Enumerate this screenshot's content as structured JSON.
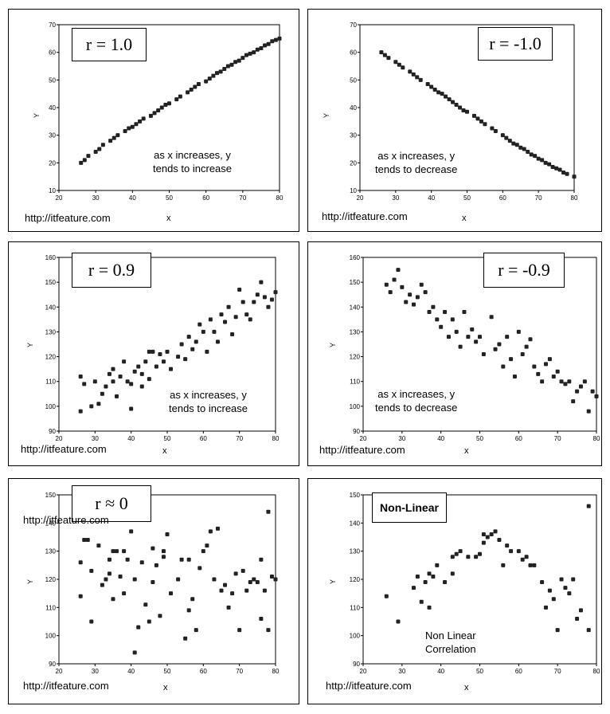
{
  "chart_data": [
    {
      "type": "scatter",
      "annotation": "r = 1.0",
      "note": [
        "as x increases, y",
        "tends to increase"
      ],
      "source": "http://itfeature.com",
      "xlabel": "x",
      "ylabel": "Y",
      "xlim": [
        20,
        80
      ],
      "ylim": [
        10,
        70
      ],
      "xticks": [
        "20",
        "30",
        "40",
        "50",
        "60",
        "70",
        "80"
      ],
      "yticks": [
        "10",
        "20",
        "30",
        "40",
        "50",
        "60",
        "70"
      ],
      "points": [
        [
          26,
          20
        ],
        [
          27,
          21
        ],
        [
          28,
          22.5
        ],
        [
          30,
          24
        ],
        [
          31,
          25
        ],
        [
          32,
          26.5
        ],
        [
          34,
          28
        ],
        [
          35,
          29
        ],
        [
          36,
          30
        ],
        [
          38,
          31.5
        ],
        [
          39,
          32.5
        ],
        [
          40,
          33
        ],
        [
          41,
          34
        ],
        [
          42,
          35
        ],
        [
          43,
          36
        ],
        [
          45,
          37
        ],
        [
          46,
          38
        ],
        [
          47,
          39
        ],
        [
          48,
          40
        ],
        [
          49,
          41
        ],
        [
          50,
          41.5
        ],
        [
          52,
          43
        ],
        [
          53,
          44
        ],
        [
          55,
          45.5
        ],
        [
          56,
          46.5
        ],
        [
          57,
          47.5
        ],
        [
          58,
          48.5
        ],
        [
          60,
          49.5
        ],
        [
          61,
          50.5
        ],
        [
          62,
          51.5
        ],
        [
          63,
          52.5
        ],
        [
          64,
          53
        ],
        [
          65,
          54
        ],
        [
          66,
          55
        ],
        [
          67,
          55.5
        ],
        [
          68,
          56.5
        ],
        [
          69,
          57
        ],
        [
          70,
          58
        ],
        [
          71,
          59
        ],
        [
          72,
          59.5
        ],
        [
          73,
          60
        ],
        [
          74,
          61
        ],
        [
          75,
          61.5
        ],
        [
          76,
          62.5
        ],
        [
          77,
          63
        ],
        [
          78,
          64
        ],
        [
          79,
          64.5
        ],
        [
          80,
          65
        ]
      ]
    },
    {
      "type": "scatter",
      "annotation": "r = -1.0",
      "note": [
        "as x increases, y",
        "tends to decrease"
      ],
      "source": "http://itfeature.com",
      "xlabel": "x",
      "ylabel": "Y",
      "xlim": [
        20,
        80
      ],
      "ylim": [
        10,
        70
      ],
      "xticks": [
        "20",
        "30",
        "40",
        "50",
        "60",
        "70",
        "80"
      ],
      "yticks": [
        "10",
        "20",
        "30",
        "40",
        "50",
        "60",
        "70"
      ],
      "points": [
        [
          26,
          60
        ],
        [
          27,
          59
        ],
        [
          28,
          58
        ],
        [
          30,
          56.5
        ],
        [
          31,
          55.5
        ],
        [
          32,
          54.5
        ],
        [
          34,
          53
        ],
        [
          35,
          52
        ],
        [
          36,
          51
        ],
        [
          37,
          50
        ],
        [
          39,
          48.5
        ],
        [
          40,
          47.5
        ],
        [
          41,
          46.5
        ],
        [
          42,
          45.5
        ],
        [
          43,
          45
        ],
        [
          44,
          44
        ],
        [
          45,
          43
        ],
        [
          46,
          42
        ],
        [
          47,
          41
        ],
        [
          48,
          40
        ],
        [
          49,
          39
        ],
        [
          50,
          38.5
        ],
        [
          52,
          37
        ],
        [
          53,
          36
        ],
        [
          54,
          35
        ],
        [
          55,
          34
        ],
        [
          57,
          32.5
        ],
        [
          58,
          31.5
        ],
        [
          60,
          30
        ],
        [
          61,
          29
        ],
        [
          62,
          28
        ],
        [
          63,
          27
        ],
        [
          64,
          26.5
        ],
        [
          65,
          25.5
        ],
        [
          66,
          25
        ],
        [
          67,
          24
        ],
        [
          68,
          23
        ],
        [
          69,
          22.5
        ],
        [
          70,
          21.5
        ],
        [
          71,
          21
        ],
        [
          72,
          20
        ],
        [
          73,
          19.5
        ],
        [
          74,
          18.5
        ],
        [
          75,
          18
        ],
        [
          76,
          17.5
        ],
        [
          77,
          16.5
        ],
        [
          78,
          16
        ],
        [
          80,
          15
        ]
      ]
    },
    {
      "type": "scatter",
      "annotation": "r = 0.9",
      "note": [
        "as x increases, y",
        "tends to increase"
      ],
      "source": "http://itfeature.com",
      "xlabel": "x",
      "ylabel": "Y",
      "xlim": [
        20,
        80
      ],
      "ylim": [
        90,
        160
      ],
      "xticks": [
        "20",
        "30",
        "40",
        "50",
        "60",
        "70",
        "80"
      ],
      "yticks": [
        "90",
        "100",
        "110",
        "120",
        "130",
        "140",
        "150",
        "160"
      ],
      "points": [
        [
          26,
          112
        ],
        [
          26,
          98
        ],
        [
          27,
          109
        ],
        [
          29,
          100
        ],
        [
          30,
          110
        ],
        [
          31,
          101
        ],
        [
          32,
          105
        ],
        [
          33,
          108
        ],
        [
          34,
          113
        ],
        [
          35,
          110
        ],
        [
          35,
          115
        ],
        [
          36,
          104
        ],
        [
          37,
          112
        ],
        [
          38,
          118
        ],
        [
          39,
          110
        ],
        [
          40,
          109
        ],
        [
          40,
          99
        ],
        [
          41,
          114
        ],
        [
          42,
          116
        ],
        [
          43,
          108
        ],
        [
          43,
          113
        ],
        [
          44,
          118
        ],
        [
          45,
          122
        ],
        [
          45,
          111
        ],
        [
          46,
          122
        ],
        [
          47,
          116
        ],
        [
          48,
          121
        ],
        [
          49,
          118
        ],
        [
          50,
          122
        ],
        [
          51,
          115
        ],
        [
          53,
          120
        ],
        [
          54,
          125
        ],
        [
          55,
          119
        ],
        [
          56,
          128
        ],
        [
          57,
          123
        ],
        [
          58,
          126
        ],
        [
          59,
          133
        ],
        [
          60,
          130
        ],
        [
          61,
          122
        ],
        [
          62,
          135
        ],
        [
          63,
          130
        ],
        [
          64,
          126
        ],
        [
          65,
          137
        ],
        [
          66,
          134
        ],
        [
          67,
          140
        ],
        [
          68,
          129
        ],
        [
          69,
          136
        ],
        [
          70,
          147
        ],
        [
          71,
          142
        ],
        [
          72,
          137
        ],
        [
          73,
          135
        ],
        [
          74,
          142
        ],
        [
          75,
          145
        ],
        [
          76,
          150
        ],
        [
          77,
          144
        ],
        [
          78,
          140
        ],
        [
          79,
          143
        ],
        [
          80,
          146
        ]
      ]
    },
    {
      "type": "scatter",
      "annotation": "r = -0.9",
      "note": [
        "as x increases, y",
        "tends to decrease"
      ],
      "source": "http://itfeature.com",
      "xlabel": "x",
      "ylabel": "Y",
      "xlim": [
        20,
        80
      ],
      "ylim": [
        90,
        160
      ],
      "xticks": [
        "20",
        "30",
        "40",
        "50",
        "60",
        "70",
        "80"
      ],
      "yticks": [
        "90",
        "100",
        "110",
        "120",
        "130",
        "140",
        "150",
        "160"
      ],
      "points": [
        [
          26,
          149
        ],
        [
          27,
          146
        ],
        [
          28,
          151
        ],
        [
          29,
          155
        ],
        [
          30,
          148
        ],
        [
          31,
          142
        ],
        [
          32,
          145
        ],
        [
          33,
          141
        ],
        [
          34,
          144
        ],
        [
          35,
          149
        ],
        [
          36,
          146
        ],
        [
          37,
          138
        ],
        [
          38,
          140
        ],
        [
          39,
          135
        ],
        [
          40,
          132
        ],
        [
          41,
          138
        ],
        [
          42,
          128
        ],
        [
          43,
          135
        ],
        [
          44,
          130
        ],
        [
          45,
          124
        ],
        [
          46,
          138
        ],
        [
          47,
          128
        ],
        [
          48,
          131
        ],
        [
          49,
          126
        ],
        [
          50,
          128
        ],
        [
          51,
          121
        ],
        [
          53,
          136
        ],
        [
          54,
          123
        ],
        [
          55,
          125
        ],
        [
          56,
          116
        ],
        [
          57,
          128
        ],
        [
          58,
          119
        ],
        [
          59,
          112
        ],
        [
          60,
          130
        ],
        [
          61,
          121
        ],
        [
          62,
          124
        ],
        [
          63,
          127
        ],
        [
          64,
          116
        ],
        [
          65,
          113
        ],
        [
          66,
          110
        ],
        [
          67,
          117
        ],
        [
          68,
          119
        ],
        [
          69,
          112
        ],
        [
          70,
          114
        ],
        [
          71,
          110
        ],
        [
          72,
          109
        ],
        [
          73,
          110
        ],
        [
          74,
          102
        ],
        [
          75,
          106
        ],
        [
          76,
          108
        ],
        [
          77,
          110
        ],
        [
          78,
          98
        ],
        [
          79,
          106
        ],
        [
          80,
          104
        ]
      ]
    },
    {
      "type": "scatter",
      "annotation": "r ≈ 0",
      "note": [],
      "source": "http://itfeature.com",
      "xlabel": "x",
      "ylabel": "Y",
      "xlim": [
        20,
        80
      ],
      "ylim": [
        90,
        150
      ],
      "xticks": [
        "20",
        "30",
        "40",
        "50",
        "60",
        "70",
        "80"
      ],
      "yticks": [
        "90",
        "100",
        "110",
        "120",
        "130",
        "140",
        "150"
      ],
      "points": [
        [
          26,
          126
        ],
        [
          26,
          114
        ],
        [
          27,
          134
        ],
        [
          28,
          134
        ],
        [
          29,
          123
        ],
        [
          29,
          105
        ],
        [
          31,
          132
        ],
        [
          32,
          118
        ],
        [
          33,
          120
        ],
        [
          34,
          127
        ],
        [
          34,
          122
        ],
        [
          35,
          130
        ],
        [
          35,
          113
        ],
        [
          36,
          130
        ],
        [
          37,
          121
        ],
        [
          38,
          115
        ],
        [
          38,
          130
        ],
        [
          39,
          127
        ],
        [
          40,
          137
        ],
        [
          41,
          94
        ],
        [
          41,
          120
        ],
        [
          42,
          103
        ],
        [
          43,
          126
        ],
        [
          44,
          111
        ],
        [
          45,
          105
        ],
        [
          46,
          131
        ],
        [
          46,
          119
        ],
        [
          47,
          125
        ],
        [
          48,
          107
        ],
        [
          49,
          128
        ],
        [
          49,
          130
        ],
        [
          50,
          136
        ],
        [
          51,
          115
        ],
        [
          53,
          120
        ],
        [
          54,
          127
        ],
        [
          55,
          99
        ],
        [
          56,
          127
        ],
        [
          56,
          109
        ],
        [
          57,
          113
        ],
        [
          58,
          102
        ],
        [
          59,
          124
        ],
        [
          60,
          130
        ],
        [
          61,
          132
        ],
        [
          62,
          137
        ],
        [
          63,
          120
        ],
        [
          64,
          138
        ],
        [
          65,
          116
        ],
        [
          66,
          118
        ],
        [
          67,
          110
        ],
        [
          68,
          115
        ],
        [
          69,
          122
        ],
        [
          70,
          102
        ],
        [
          71,
          123
        ],
        [
          72,
          116
        ],
        [
          73,
          119
        ],
        [
          74,
          120
        ],
        [
          75,
          119
        ],
        [
          76,
          106
        ],
        [
          76,
          127
        ],
        [
          77,
          116
        ],
        [
          78,
          144
        ],
        [
          78,
          102
        ],
        [
          79,
          121
        ],
        [
          80,
          120
        ]
      ]
    },
    {
      "type": "scatter",
      "annotation": "Non-Linear",
      "note": [
        "Non Linear",
        "Correlation"
      ],
      "source": "http://itfeature.com",
      "xlabel": "x",
      "ylabel": "Y",
      "xlim": [
        20,
        80
      ],
      "ylim": [
        90,
        150
      ],
      "xticks": [
        "20",
        "30",
        "40",
        "50",
        "60",
        "70",
        "80"
      ],
      "yticks": [
        "90",
        "100",
        "110",
        "120",
        "130",
        "140",
        "150"
      ],
      "points": [
        [
          26,
          114
        ],
        [
          29,
          105
        ],
        [
          33,
          117
        ],
        [
          34,
          121
        ],
        [
          35,
          112
        ],
        [
          36,
          119
        ],
        [
          37,
          110
        ],
        [
          37,
          122
        ],
        [
          38,
          121
        ],
        [
          39,
          125
        ],
        [
          41,
          119
        ],
        [
          43,
          122
        ],
        [
          43,
          128
        ],
        [
          44,
          129
        ],
        [
          45,
          130
        ],
        [
          47,
          128
        ],
        [
          49,
          128
        ],
        [
          50,
          129
        ],
        [
          51,
          133
        ],
        [
          51,
          136
        ],
        [
          52,
          135
        ],
        [
          53,
          136
        ],
        [
          54,
          137
        ],
        [
          55,
          134
        ],
        [
          56,
          125
        ],
        [
          57,
          132
        ],
        [
          58,
          130
        ],
        [
          60,
          130
        ],
        [
          61,
          127
        ],
        [
          62,
          128
        ],
        [
          63,
          125
        ],
        [
          64,
          125
        ],
        [
          66,
          119
        ],
        [
          67,
          110
        ],
        [
          68,
          116
        ],
        [
          69,
          113
        ],
        [
          70,
          102
        ],
        [
          71,
          120
        ],
        [
          72,
          117
        ],
        [
          73,
          115
        ],
        [
          74,
          120
        ],
        [
          75,
          106
        ],
        [
          76,
          109
        ],
        [
          78,
          102
        ],
        [
          78,
          146
        ]
      ]
    }
  ]
}
